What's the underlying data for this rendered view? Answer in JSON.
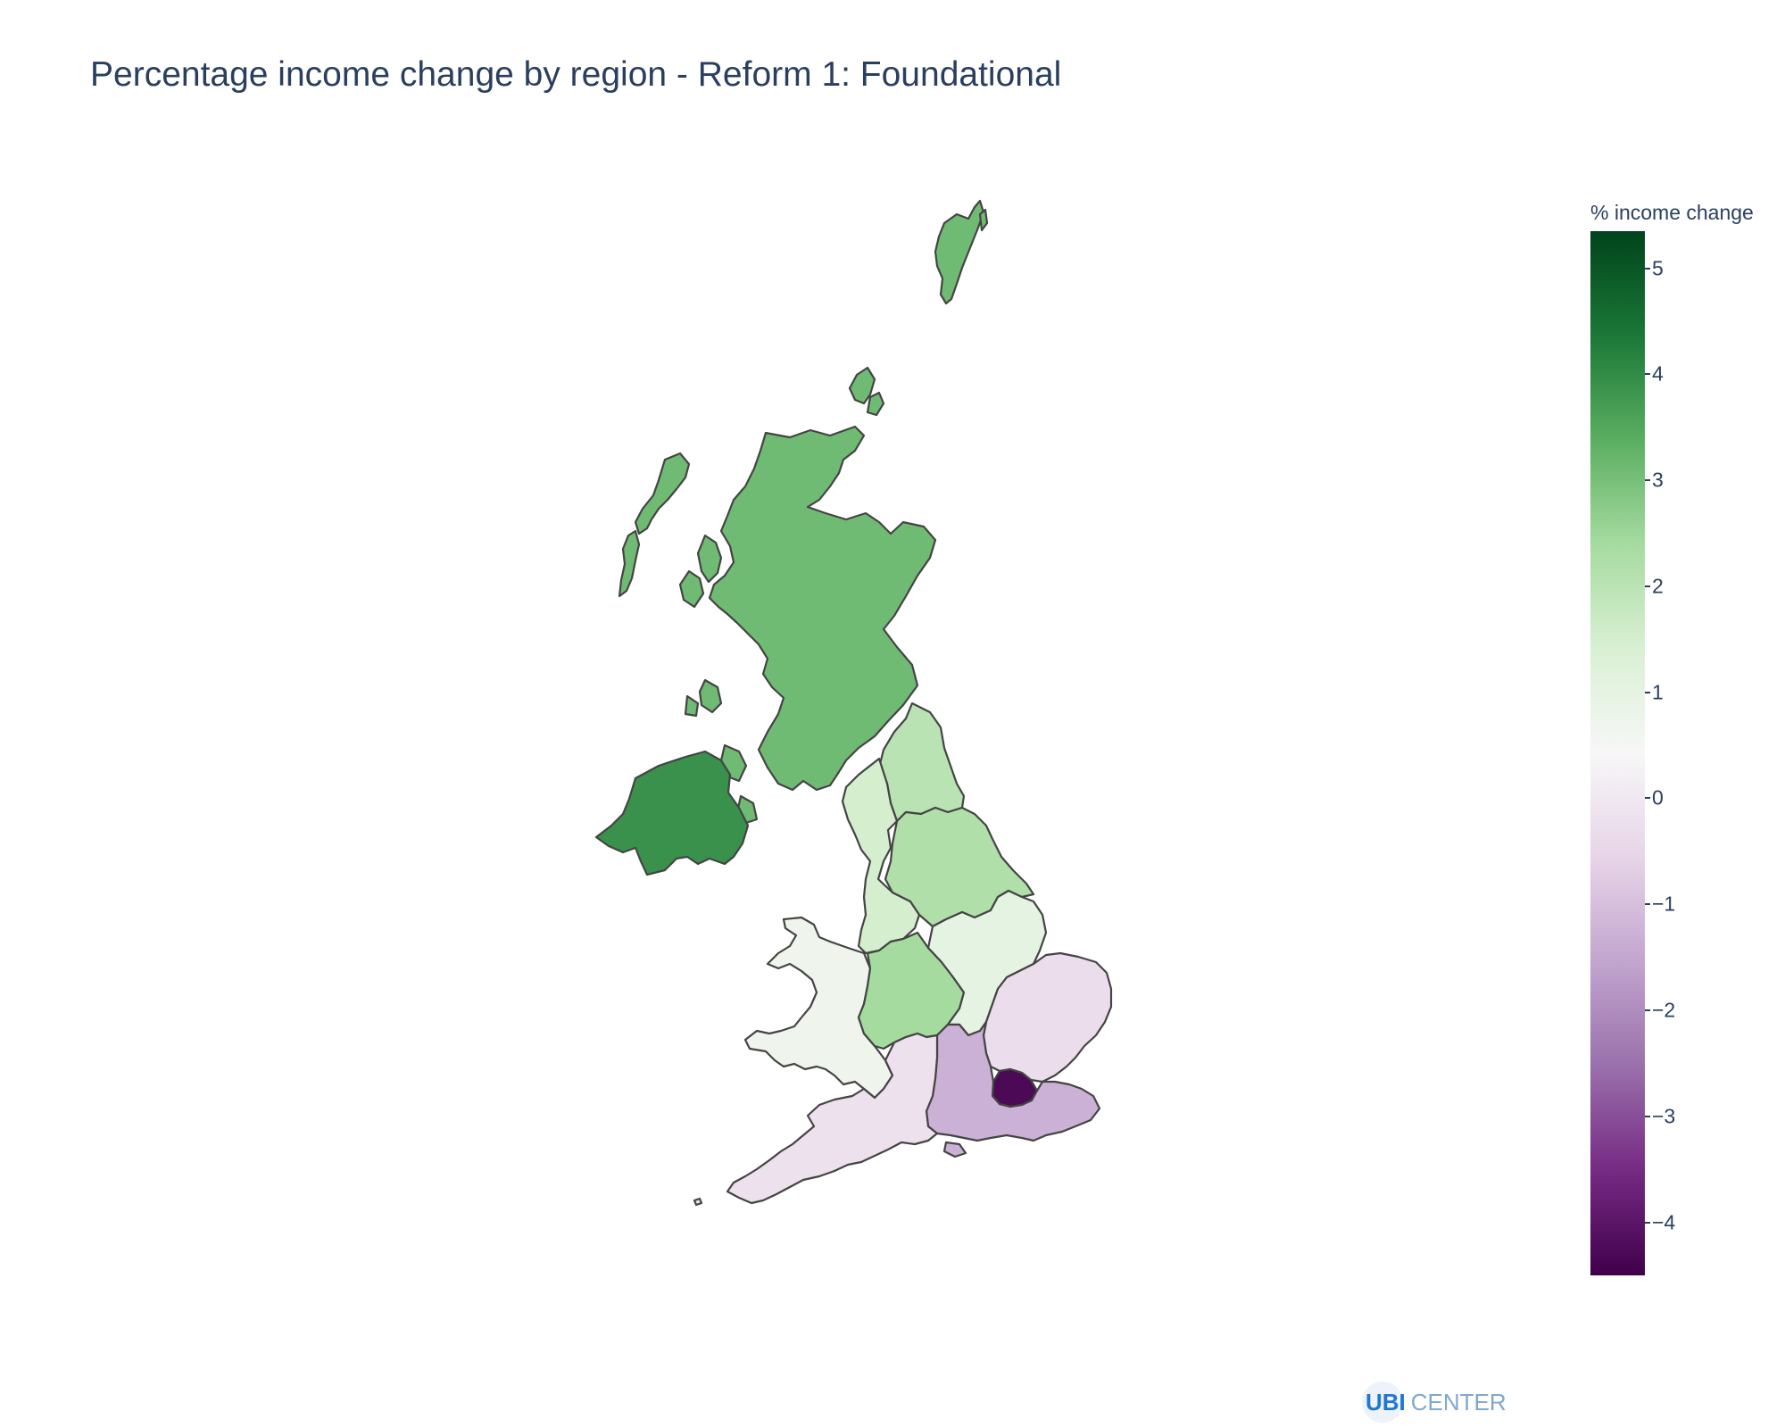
{
  "title": "Percentage income change by region - Reform 1: Foundational",
  "colorbar": {
    "title": "% income change",
    "range": [
      -4.5,
      5.35
    ],
    "ticks": [
      "5",
      "4",
      "3",
      "2",
      "1",
      "0",
      "−1",
      "−2",
      "−3",
      "−4"
    ],
    "tick_values": [
      5,
      4,
      3,
      2,
      1,
      0,
      -1,
      -2,
      -3,
      -4
    ],
    "colorscale": [
      "#40004b",
      "#762a83",
      "#9970ab",
      "#c2a5cf",
      "#e7d4e8",
      "#f7f7f7",
      "#d9f0d3",
      "#a6dba0",
      "#5aae61",
      "#1b7837",
      "#00441b"
    ]
  },
  "regions": [
    {
      "name": "Scotland",
      "value": 3.1
    },
    {
      "name": "Northern Ireland",
      "value": 3.9
    },
    {
      "name": "North East",
      "value": 2.0
    },
    {
      "name": "North West",
      "value": 1.5
    },
    {
      "name": "Yorkshire and the Humber",
      "value": 2.2
    },
    {
      "name": "Wales",
      "value": 0.7
    },
    {
      "name": "West Midlands",
      "value": 2.4
    },
    {
      "name": "East Midlands",
      "value": 1.0
    },
    {
      "name": "East of England",
      "value": -0.3
    },
    {
      "name": "London",
      "value": -4.3
    },
    {
      "name": "South East",
      "value": -1.3
    },
    {
      "name": "South West",
      "value": -0.2
    }
  ],
  "brand": {
    "ubi": "UBI",
    "center": "CENTER"
  }
}
